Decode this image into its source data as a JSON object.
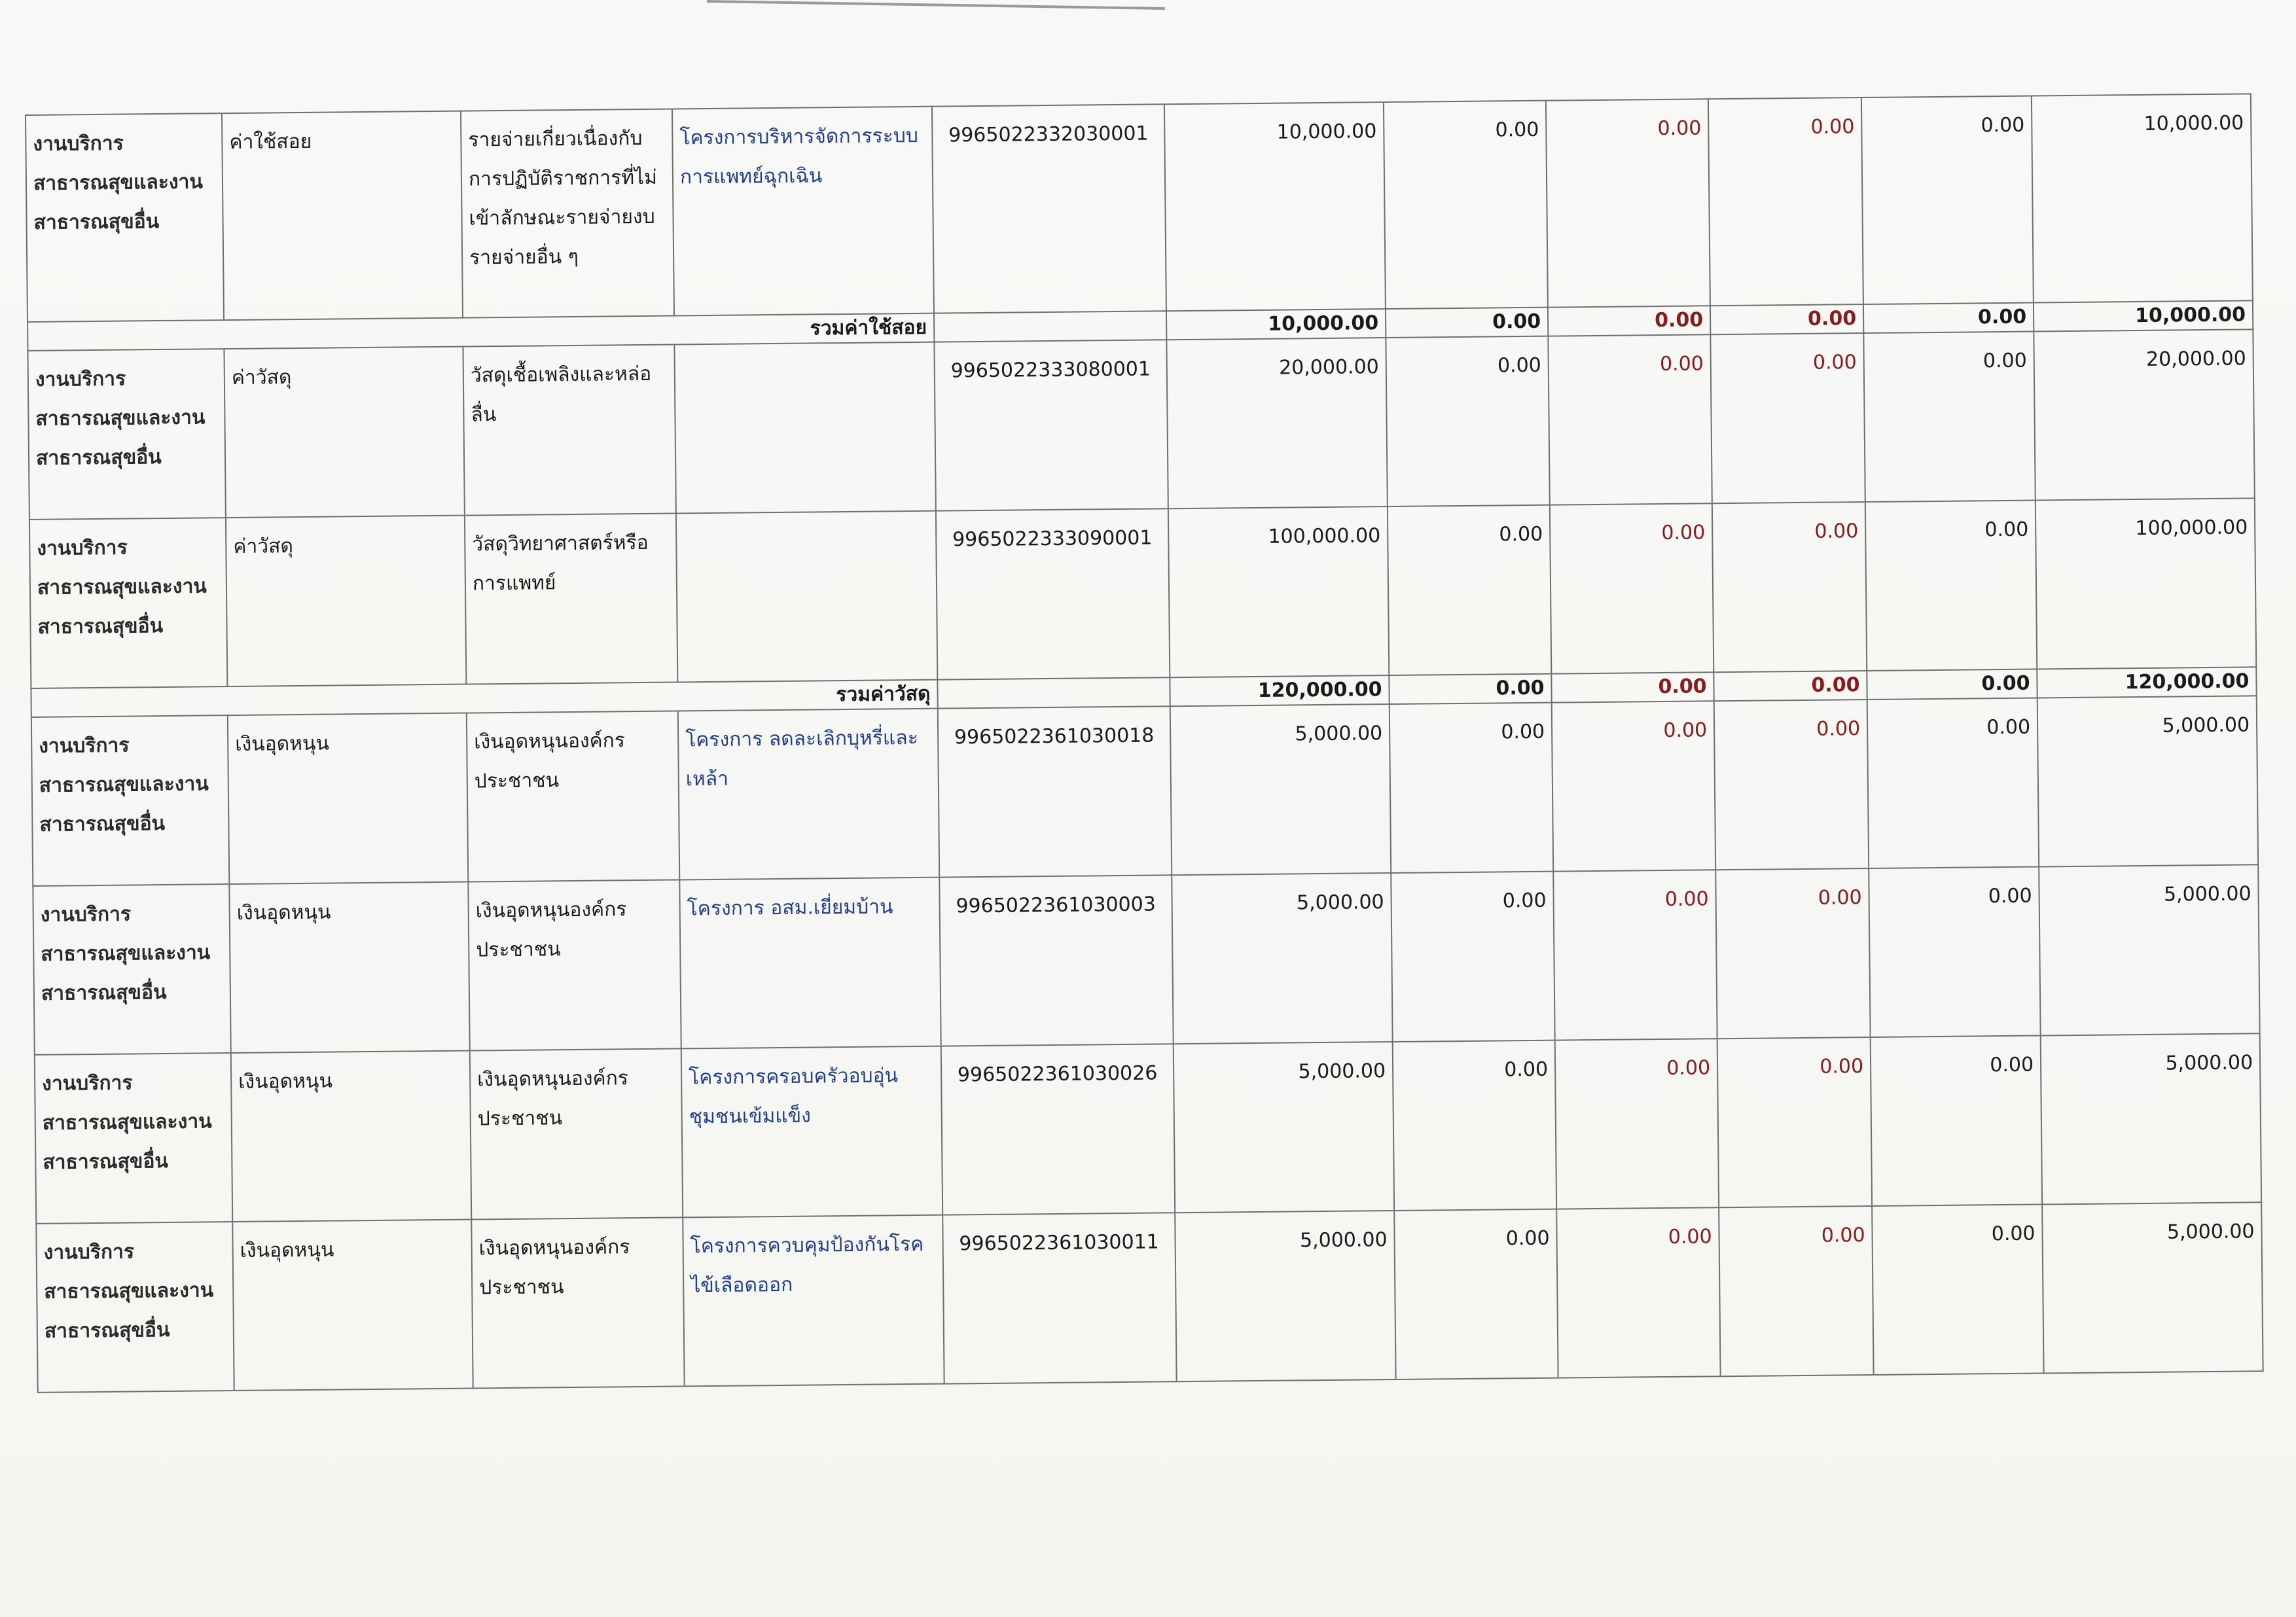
{
  "rows": [
    {
      "kind": "item",
      "dept": "งานบริการสาธารณสุขและงานสาธารณสุขอื่น",
      "category": "ค่าใช้สอย",
      "item": "รายจ่ายเกี่ยวเนื่องกับการปฏิบัติราชการที่ไม่เข้าลักษณะรายจ่ายงบรายจ่ายอื่น ๆ",
      "project": "โครงการบริหารจัดการระบบการแพทย์ฉุกเฉิน",
      "code": "9965022332030001",
      "v1": "10,000.00",
      "v2": "0.00",
      "v3": "0.00",
      "v4": "0.00",
      "v5": "0.00",
      "v6": "10,000.00"
    },
    {
      "kind": "sum",
      "label": "รวมค่าใช้สอย",
      "v1": "10,000.00",
      "v2": "0.00",
      "v3": "0.00",
      "v4": "0.00",
      "v5": "0.00",
      "v6": "10,000.00"
    },
    {
      "kind": "item",
      "dept": "งานบริการสาธารณสุขและงานสาธารณสุขอื่น",
      "category": "ค่าวัสดุ",
      "item": "วัสดุเชื้อเพลิงและหล่อลื่น",
      "project": "",
      "code": "9965022333080001",
      "v1": "20,000.00",
      "v2": "0.00",
      "v3": "0.00",
      "v4": "0.00",
      "v5": "0.00",
      "v6": "20,000.00"
    },
    {
      "kind": "item",
      "dept": "งานบริการสาธารณสุขและงานสาธารณสุขอื่น",
      "category": "ค่าวัสดุ",
      "item": "วัสดุวิทยาศาสตร์หรือการแพทย์",
      "project": "",
      "code": "9965022333090001",
      "v1": "100,000.00",
      "v2": "0.00",
      "v3": "0.00",
      "v4": "0.00",
      "v5": "0.00",
      "v6": "100,000.00"
    },
    {
      "kind": "sum",
      "label": "รวมค่าวัสดุ",
      "v1": "120,000.00",
      "v2": "0.00",
      "v3": "0.00",
      "v4": "0.00",
      "v5": "0.00",
      "v6": "120,000.00"
    },
    {
      "kind": "item",
      "dept": "งานบริการสาธารณสุขและงานสาธารณสุขอื่น",
      "category": "เงินอุดหนุน",
      "item": "เงินอุดหนุนองค์กรประชาชน",
      "project": "โครงการ ลดละเลิกบุหรี่และเหล้า",
      "code": "9965022361030018",
      "v1": "5,000.00",
      "v2": "0.00",
      "v3": "0.00",
      "v4": "0.00",
      "v5": "0.00",
      "v6": "5,000.00"
    },
    {
      "kind": "item",
      "dept": "งานบริการสาธารณสุขและงานสาธารณสุขอื่น",
      "category": "เงินอุดหนุน",
      "item": "เงินอุดหนุนองค์กรประชาชน",
      "project": "โครงการ อสม.เยี่ยมบ้าน",
      "code": "9965022361030003",
      "v1": "5,000.00",
      "v2": "0.00",
      "v3": "0.00",
      "v4": "0.00",
      "v5": "0.00",
      "v6": "5,000.00"
    },
    {
      "kind": "item",
      "dept": "งานบริการสาธารณสุขและงานสาธารณสุขอื่น",
      "category": "เงินอุดหนุน",
      "item": "เงินอุดหนุนองค์กรประชาชน",
      "project": "โครงการครอบครัวอบอุ่นชุมชนเข้มแข็ง",
      "code": "9965022361030026",
      "v1": "5,000.00",
      "v2": "0.00",
      "v3": "0.00",
      "v4": "0.00",
      "v5": "0.00",
      "v6": "5,000.00"
    },
    {
      "kind": "item",
      "dept": "งานบริการสาธารณสุขและงานสาธารณสุขอื่น",
      "category": "เงินอุดหนุน",
      "item": "เงินอุดหนุนองค์กรประชาชน",
      "project": "โครงการควบคุมป้องกันโรคไข้เลือดออก",
      "code": "9965022361030011",
      "v1": "5,000.00",
      "v2": "0.00",
      "v3": "0.00",
      "v4": "0.00",
      "v5": "0.00",
      "v6": "5,000.00"
    }
  ]
}
